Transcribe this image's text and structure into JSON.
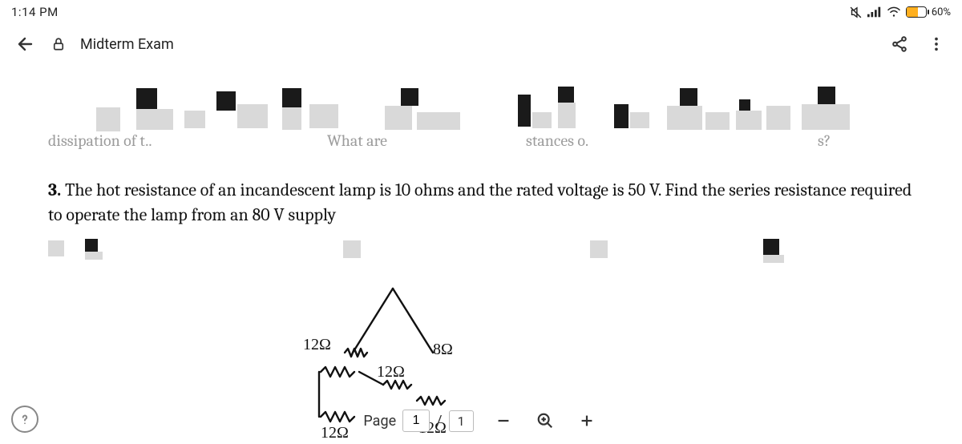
{
  "status": {
    "time": "1:14 PM",
    "battery_percent": "60%",
    "battery_fill_pct": 60,
    "battery_fill_color": "#ffb020"
  },
  "toolbar": {
    "title": "Midterm Exam"
  },
  "obscured": {
    "line2_left": "dissipation of t..",
    "line2_mid": "What are",
    "line2_mid2": "stances o.",
    "line2_right": "s?"
  },
  "question": {
    "number": "3.",
    "text": "The hot resistance of an incandescent lamp is 10 ohms and the rated voltage is 50 V. Find the series resistance required to operate the lamp from an 80 V supply"
  },
  "sketch_labels": {
    "a": "12Ω",
    "b": "12Ω",
    "c": "12Ω",
    "d": "8Ω",
    "e": "12Ω"
  },
  "page_controls": {
    "label": "Page",
    "current": "1",
    "sep": "/",
    "total": "1"
  },
  "colors": {
    "ink": "#1a1a1a",
    "grey_block": "#d9d9d9",
    "faded_text": "#9c9c9c",
    "battery_border": "#222222",
    "accent": "#ffb020"
  }
}
